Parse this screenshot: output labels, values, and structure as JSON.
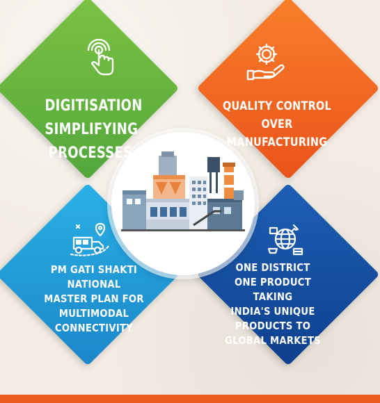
{
  "quadrants": {
    "top_left": {
      "lines": [
        "DIGITISATION",
        "SIMPLIFYING",
        "PROCESSES"
      ],
      "color": "#6bb83f"
    },
    "top_right": {
      "lines": [
        "QUALITY CONTROL",
        "OVER MANUFACTURING"
      ],
      "color": "#f06a22"
    },
    "bottom_left": {
      "lines": [
        "PM GATI SHAKTI",
        "NATIONAL",
        "MASTER PLAN FOR",
        "MULTIMODAL",
        "CONNECTIVITY"
      ],
      "color": "#23a1dc"
    },
    "bottom_right": {
      "lines": [
        "ONE DISTRICT",
        "ONE PRODUCT TAKING",
        "INDIA'S UNIQUE",
        "PRODUCTS TO",
        "GLOBAL MARKETS"
      ],
      "color": "#174f9f"
    }
  },
  "icons": {
    "top_left": "touch-icon",
    "top_right": "gear-hand-icon",
    "bottom_left": "delivery-truck-icon",
    "bottom_right": "globe-trade-icon",
    "center": "factory-icon"
  },
  "accent": "#e85d1c"
}
